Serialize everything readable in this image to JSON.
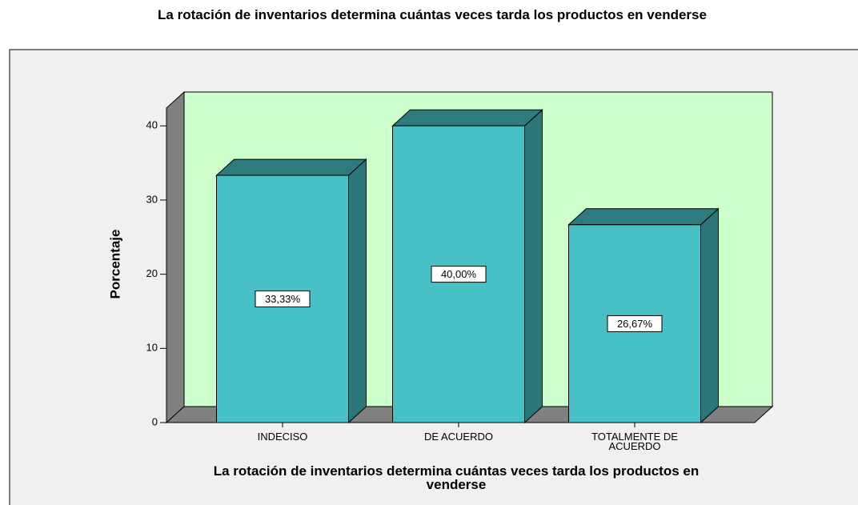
{
  "chart_data": {
    "type": "bar",
    "title": "La rotación de inventarios determina cuántas veces tarda  los productos en venderse",
    "xlabel": "La rotación de inventarios determina cuántas veces tarda los productos en venderse",
    "ylabel": "Porcentaje",
    "categories": [
      "INDECISO",
      "DE ACUERDO",
      "TOTALMENTE DE ACUERDO"
    ],
    "values": [
      33.33,
      40,
      26.67
    ],
    "value_labels": [
      "33,33%",
      "40,00%",
      "26,67%"
    ],
    "color": "#48c1c6",
    "ylim": [
      0,
      42.4
    ],
    "yticks": [
      0,
      10,
      20,
      30,
      40
    ]
  }
}
